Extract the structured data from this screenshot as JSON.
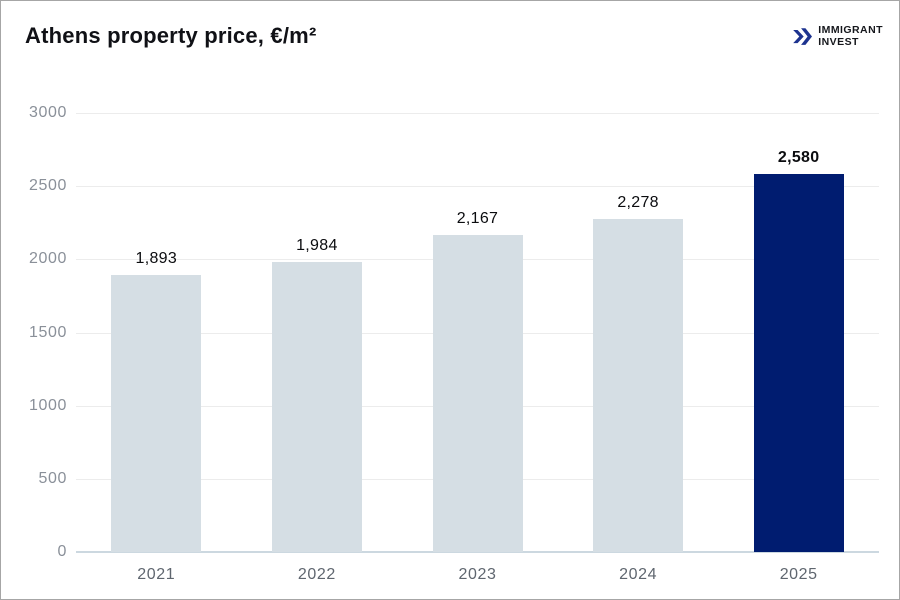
{
  "header": {
    "title": "Athens property price, €/m²",
    "logo": {
      "line1": "IMMIGRANT",
      "line2": "INVEST",
      "icon": "double-chevron-icon",
      "icon_color": "#1d338f",
      "text_color": "#15171c"
    }
  },
  "chart_data": {
    "type": "bar",
    "title": "Athens property price, €/m²",
    "categories": [
      "2021",
      "2022",
      "2023",
      "2024",
      "2025"
    ],
    "values": [
      1893,
      1984,
      2167,
      2278,
      2580
    ],
    "value_labels": [
      "1,893",
      "1,984",
      "2,167",
      "2,278",
      "2,580"
    ],
    "highlight_index": 4,
    "xlabel": "",
    "ylabel": "",
    "ylim": [
      0,
      3000
    ],
    "ytick_step": 500,
    "yticks": [
      "0",
      "500",
      "1000",
      "1500",
      "2000",
      "2500",
      "3000"
    ],
    "grid": true,
    "legend": "none",
    "colors": {
      "bar": "#d5dee4",
      "bar_highlight": "#001c70",
      "grid_line": "#ececec",
      "baseline": "#ccd8e0",
      "ytick_text": "#8a9099",
      "xtick_text": "#5f666f",
      "value_text": "#0b0c0f"
    }
  }
}
